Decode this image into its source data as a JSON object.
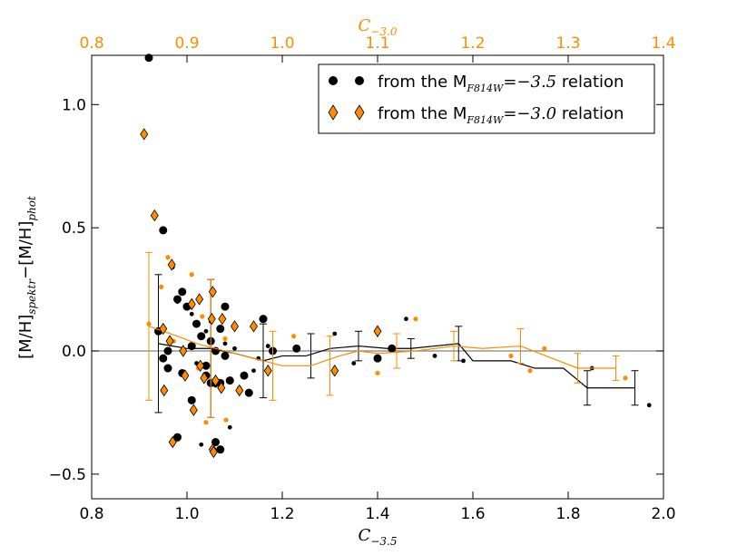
{
  "chart_data": {
    "type": "scatter",
    "x_bottom": {
      "label_main": "C",
      "label_sub": "−3.5",
      "range": [
        0.8,
        2.0
      ],
      "ticks": [
        "0.8",
        "1.0",
        "1.2",
        "1.4",
        "1.6",
        "1.8",
        "2.0"
      ]
    },
    "x_top": {
      "label_main": "C",
      "label_sub": "−3.0",
      "range": [
        0.8,
        1.4
      ],
      "ticks": [
        "0.8",
        "0.9",
        "1.0",
        "1.1",
        "1.2",
        "1.3",
        "1.4"
      ],
      "color": "#ff8c00"
    },
    "y": {
      "label_parts": [
        "[M/H]",
        "spektr",
        "−[M/H]",
        "phot"
      ],
      "range": [
        -0.6,
        1.2
      ],
      "ticks": [
        "−0.5",
        "0.0",
        "0.5",
        "1.0"
      ],
      "tick_values": [
        -0.5,
        0.0,
        0.5,
        1.0
      ]
    },
    "zero_line": 0.0,
    "legend": {
      "position": "top-right",
      "entries": [
        {
          "prefix": "from the M",
          "sub": "F814W",
          "eq": "=−3.5",
          "suffix": " relation",
          "marker": "circle",
          "color": "#000000"
        },
        {
          "prefix": "from the M",
          "sub": "F814W",
          "eq": "=−3.0",
          "suffix": " relation",
          "marker": "diamond",
          "color": "#ff8c00"
        }
      ]
    },
    "series": [
      {
        "name": "M_F814W=-3.5 relation",
        "marker": "circle",
        "color": "#000000",
        "big_points": [
          [
            0.92,
            1.19
          ],
          [
            0.95,
            0.49
          ],
          [
            0.94,
            0.08
          ],
          [
            0.96,
            0.0
          ],
          [
            0.95,
            -0.03
          ],
          [
            0.96,
            -0.07
          ],
          [
            0.98,
            0.21
          ],
          [
            0.99,
            0.24
          ],
          [
            1.0,
            0.18
          ],
          [
            0.99,
            -0.09
          ],
          [
            0.98,
            -0.35
          ],
          [
            1.01,
            0.02
          ],
          [
            1.01,
            -0.2
          ],
          [
            1.02,
            0.11
          ],
          [
            1.03,
            0.06
          ],
          [
            1.04,
            -0.06
          ],
          [
            1.04,
            -0.1
          ],
          [
            1.05,
            0.04
          ],
          [
            1.05,
            -0.13
          ],
          [
            1.06,
            -0.37
          ],
          [
            1.07,
            -0.4
          ],
          [
            1.06,
            0.0
          ],
          [
            1.07,
            0.09
          ],
          [
            1.08,
            -0.02
          ],
          [
            1.07,
            -0.13
          ],
          [
            1.08,
            0.18
          ],
          [
            1.09,
            -0.12
          ],
          [
            1.12,
            -0.1
          ],
          [
            1.13,
            -0.17
          ],
          [
            1.16,
            0.13
          ],
          [
            1.18,
            0.0
          ],
          [
            1.23,
            0.01
          ],
          [
            1.4,
            -0.03
          ],
          [
            1.43,
            0.01
          ]
        ],
        "small_points": [
          [
            0.97,
            0.34
          ],
          [
            0.98,
            0.2
          ],
          [
            1.01,
            0.15
          ],
          [
            1.02,
            -0.05
          ],
          [
            1.03,
            -0.38
          ],
          [
            1.04,
            0.08
          ],
          [
            1.05,
            0.12
          ],
          [
            1.06,
            -0.14
          ],
          [
            1.08,
            0.03
          ],
          [
            1.09,
            -0.31
          ],
          [
            1.1,
            0.01
          ],
          [
            1.11,
            -0.15
          ],
          [
            1.14,
            -0.08
          ],
          [
            1.15,
            -0.03
          ],
          [
            1.17,
            0.02
          ],
          [
            1.31,
            0.07
          ],
          [
            1.35,
            -0.05
          ],
          [
            1.46,
            0.13
          ],
          [
            1.52,
            -0.02
          ],
          [
            1.58,
            -0.04
          ],
          [
            1.85,
            -0.07
          ],
          [
            1.97,
            -0.22
          ]
        ],
        "line": [
          [
            0.94,
            0.03
          ],
          [
            1.0,
            0.01
          ],
          [
            1.05,
            0.01
          ],
          [
            1.1,
            -0.01
          ],
          [
            1.16,
            -0.04
          ],
          [
            1.2,
            -0.02
          ],
          [
            1.25,
            -0.02
          ],
          [
            1.3,
            0.01
          ],
          [
            1.36,
            0.02
          ],
          [
            1.42,
            0.01
          ],
          [
            1.47,
            0.01
          ],
          [
            1.52,
            0.02
          ],
          [
            1.57,
            0.03
          ],
          [
            1.6,
            -0.04
          ],
          [
            1.68,
            -0.04
          ],
          [
            1.73,
            -0.07
          ],
          [
            1.79,
            -0.07
          ],
          [
            1.84,
            -0.15
          ],
          [
            1.94,
            -0.15
          ]
        ],
        "errorbars": [
          {
            "x": 0.94,
            "y": 0.03,
            "err": 0.28
          },
          {
            "x": 1.05,
            "y": 0.01,
            "err": 0.28
          },
          {
            "x": 1.16,
            "y": -0.04,
            "err": 0.15
          },
          {
            "x": 1.26,
            "y": -0.02,
            "err": 0.09
          },
          {
            "x": 1.36,
            "y": 0.02,
            "err": 0.06
          },
          {
            "x": 1.47,
            "y": 0.01,
            "err": 0.04
          },
          {
            "x": 1.57,
            "y": 0.03,
            "err": 0.07
          },
          {
            "x": 1.84,
            "y": -0.15,
            "err": 0.07
          },
          {
            "x": 1.94,
            "y": -0.15,
            "err": 0.07
          }
        ]
      },
      {
        "name": "M_F814W=-3.0 relation",
        "marker": "diamond",
        "color": "#ff8c00",
        "diamond_points": [
          [
            0.855,
            0.88
          ],
          [
            0.866,
            0.55
          ],
          [
            0.875,
            0.09
          ],
          [
            0.876,
            -0.16
          ],
          [
            0.882,
            0.04
          ],
          [
            0.884,
            0.35
          ],
          [
            0.885,
            -0.37
          ],
          [
            0.896,
            0.0
          ],
          [
            0.898,
            -0.1
          ],
          [
            0.905,
            0.19
          ],
          [
            0.907,
            -0.24
          ],
          [
            0.913,
            0.21
          ],
          [
            0.914,
            -0.06
          ],
          [
            0.918,
            -0.11
          ],
          [
            0.926,
            0.13
          ],
          [
            0.927,
            0.24
          ],
          [
            0.927,
            -0.4
          ],
          [
            0.928,
            -0.41
          ],
          [
            0.93,
            -0.12
          ],
          [
            0.936,
            -0.15
          ],
          [
            0.937,
            0.13
          ],
          [
            0.95,
            0.1
          ],
          [
            0.955,
            -0.16
          ],
          [
            0.97,
            0.1
          ],
          [
            0.985,
            -0.08
          ],
          [
            1.055,
            -0.08
          ],
          [
            1.1,
            0.08
          ]
        ],
        "small_points": [
          [
            0.86,
            0.11
          ],
          [
            0.873,
            0.26
          ],
          [
            0.88,
            0.38
          ],
          [
            0.886,
            0.04
          ],
          [
            0.89,
            -0.36
          ],
          [
            0.905,
            0.31
          ],
          [
            0.912,
            -0.07
          ],
          [
            0.916,
            0.14
          ],
          [
            0.92,
            -0.29
          ],
          [
            0.94,
            0.05
          ],
          [
            0.941,
            -0.28
          ],
          [
            1.012,
            0.06
          ],
          [
            1.1,
            -0.09
          ],
          [
            1.14,
            0.13
          ],
          [
            1.26,
            -0.08
          ],
          [
            1.275,
            0.01
          ],
          [
            1.36,
            -0.11
          ],
          [
            1.24,
            -0.02
          ]
        ],
        "line": [
          [
            0.86,
            0.1
          ],
          [
            0.89,
            0.06
          ],
          [
            0.91,
            0.03
          ],
          [
            0.93,
            0.01
          ],
          [
            0.96,
            -0.02
          ],
          [
            1.0,
            -0.06
          ],
          [
            1.03,
            -0.06
          ],
          [
            1.06,
            -0.02
          ],
          [
            1.08,
            0.0
          ],
          [
            1.1,
            -0.01
          ],
          [
            1.14,
            0.0
          ],
          [
            1.18,
            0.02
          ],
          [
            1.21,
            0.01
          ],
          [
            1.25,
            0.02
          ],
          [
            1.29,
            -0.04
          ],
          [
            1.31,
            -0.07
          ],
          [
            1.34,
            -0.07
          ],
          [
            1.35,
            -0.07
          ]
        ],
        "errorbars": [
          {
            "x": 0.86,
            "y": 0.1,
            "err": 0.3
          },
          {
            "x": 0.925,
            "y": 0.01,
            "err": 0.28
          },
          {
            "x": 0.99,
            "y": -0.06,
            "err": 0.14
          },
          {
            "x": 1.05,
            "y": -0.06,
            "err": 0.12
          },
          {
            "x": 1.12,
            "y": 0.0,
            "err": 0.07
          },
          {
            "x": 1.18,
            "y": 0.02,
            "err": 0.06
          },
          {
            "x": 1.25,
            "y": 0.02,
            "err": 0.07
          },
          {
            "x": 1.31,
            "y": -0.07,
            "err": 0.06
          },
          {
            "x": 1.35,
            "y": -0.07,
            "err": 0.05
          }
        ]
      }
    ]
  }
}
